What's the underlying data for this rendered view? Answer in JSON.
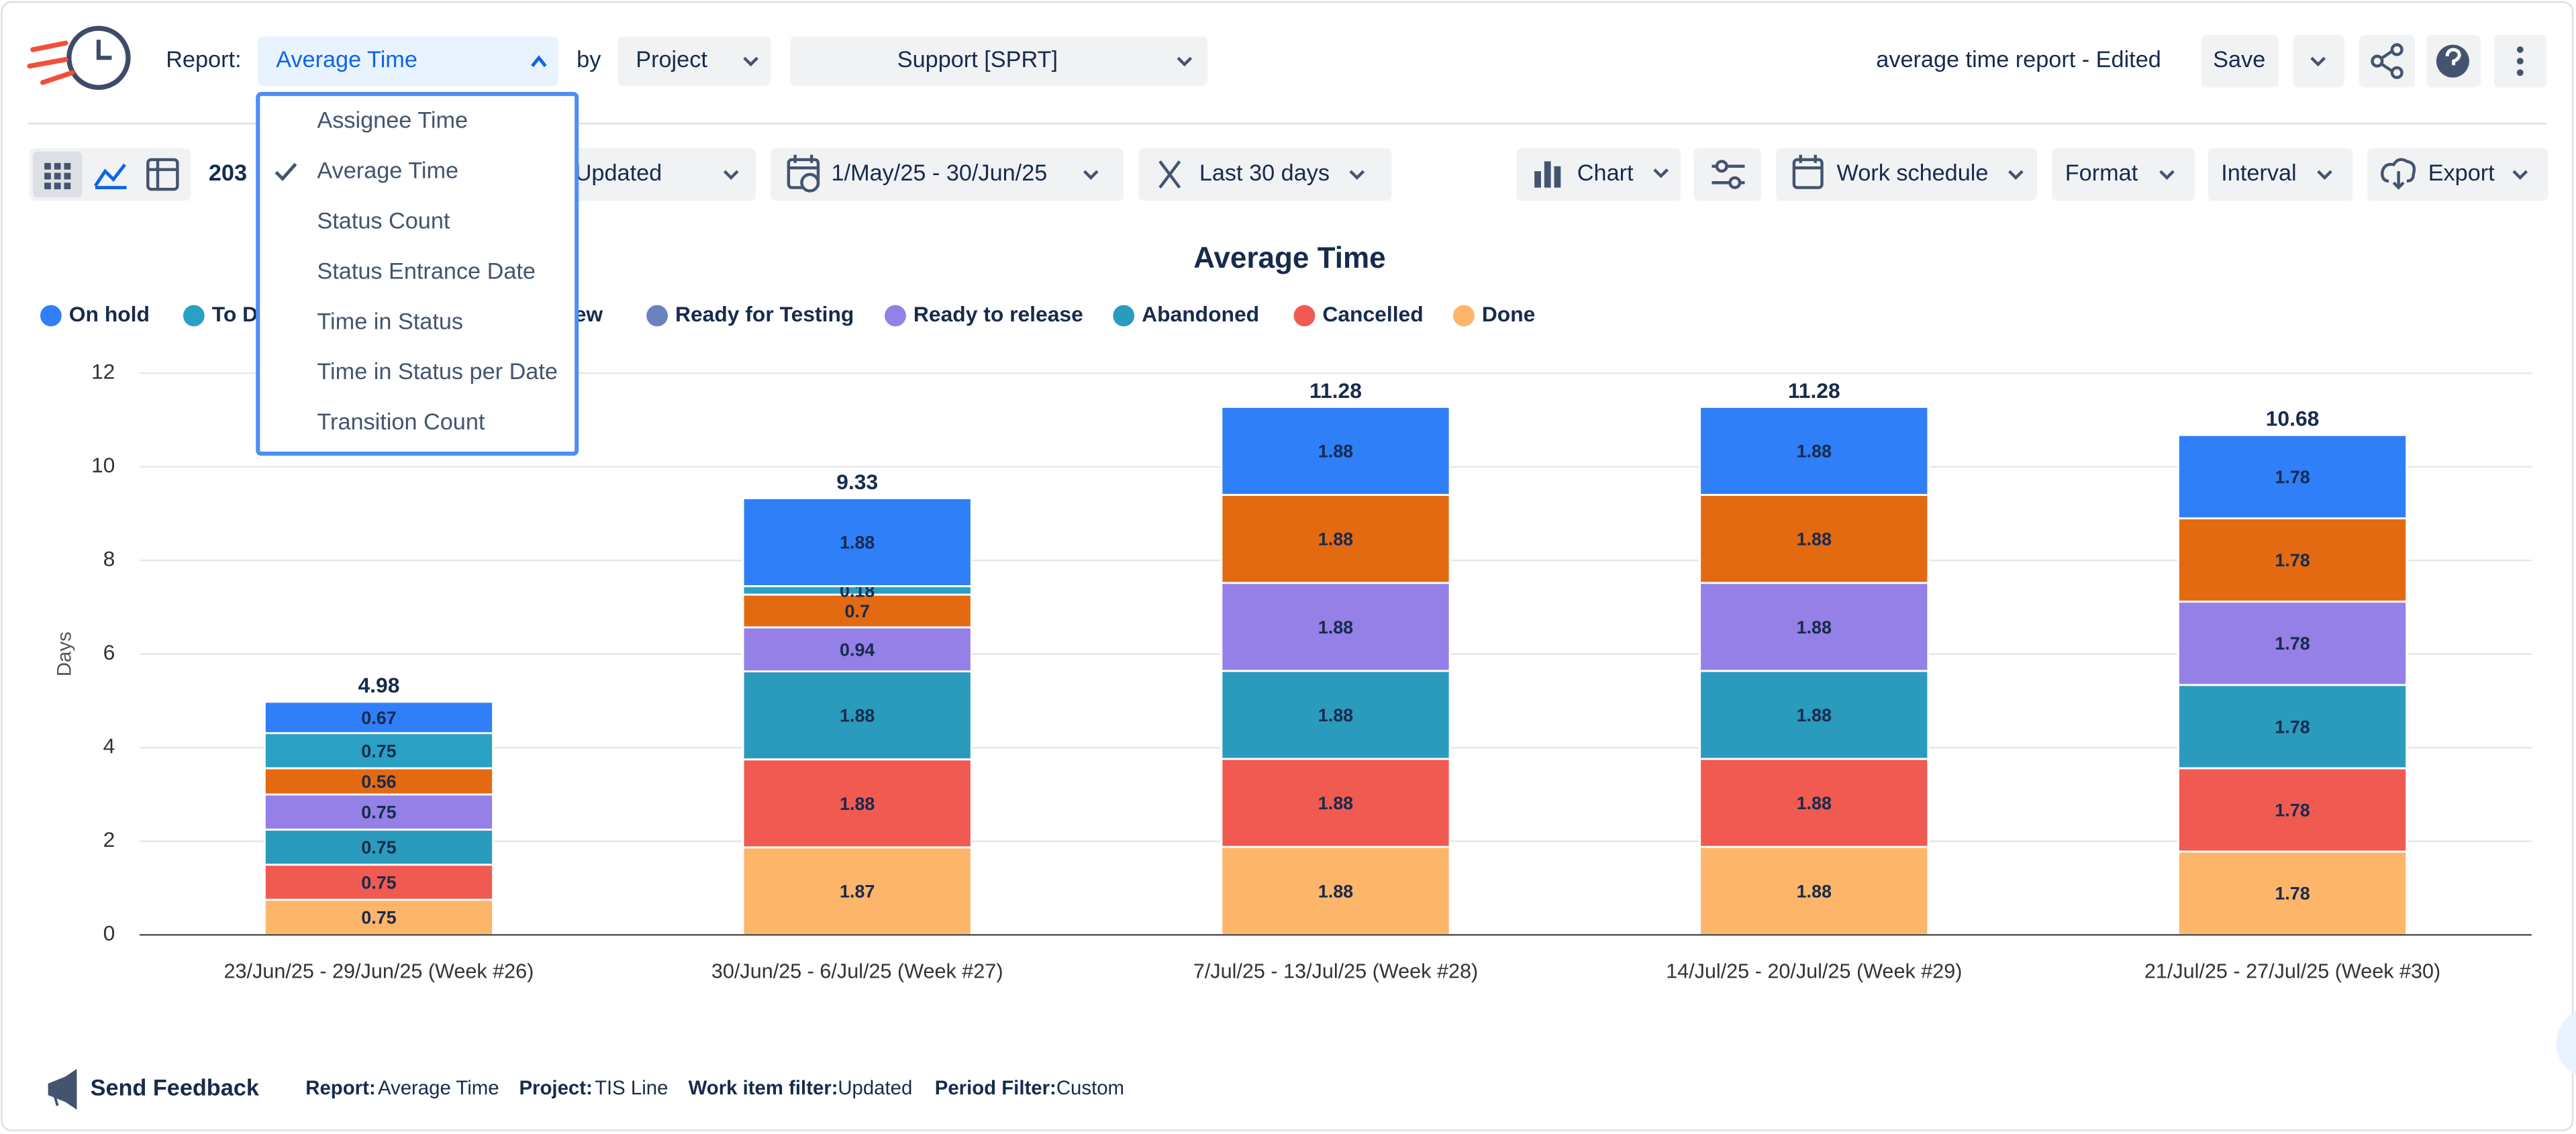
{
  "header": {
    "report_label": "Report:",
    "report": "Average Time",
    "by": "by",
    "group": "Project",
    "project": "Support [SPRT]",
    "report_name": "average time report - Edited",
    "save": "Save"
  },
  "toolbar": {
    "count": "203",
    "filter": "Updated",
    "date_range": "1/May/25 - 30/Jun/25",
    "period": "Last 30 days",
    "chart": "Chart",
    "work_schedule": "Work schedule",
    "format": "Format",
    "interval": "Interval",
    "export": "Export"
  },
  "report_menu": {
    "items": [
      "Assignee Time",
      "Average Time",
      "Status Count",
      "Status Entrance Date",
      "Time in Status",
      "Time in Status per Date",
      "Transition Count"
    ],
    "selected": 1
  },
  "chart_data": {
    "type": "bar",
    "stacked": true,
    "title": "Average Time",
    "y_label": "Days",
    "categories": [
      "23/Jun/25 - 29/Jun/25 (Week #26)",
      "30/Jun/25 - 6/Jul/25 (Week #27)",
      "7/Jul/25 - 13/Jul/25 (Week #28)",
      "14/Jul/25 - 20/Jul/25 (Week #29)",
      "21/Jul/25 - 27/Jul/25 (Week #30)"
    ],
    "series": [
      {
        "name": "On hold",
        "color": "#2f7ff8",
        "values": [
          0.67,
          1.88,
          1.88,
          1.88,
          1.78
        ]
      },
      {
        "name": "To Do",
        "color": "#2aa0c4",
        "values": [
          0.75,
          0.18,
          null,
          null,
          null
        ]
      },
      {
        "name": "In Review",
        "color": "#e46a12",
        "values": [
          0.56,
          0.7,
          1.88,
          1.88,
          1.78
        ]
      },
      {
        "name": "Ready for Testing",
        "color": "#6b82c0",
        "values": [
          null,
          null,
          null,
          null,
          null
        ]
      },
      {
        "name": "Ready to release",
        "color": "#9480e6",
        "values": [
          0.75,
          0.94,
          1.88,
          1.88,
          1.78
        ]
      },
      {
        "name": "Abandoned",
        "color": "#2a9bbd",
        "values": [
          0.75,
          1.88,
          1.88,
          1.88,
          1.78
        ]
      },
      {
        "name": "Cancelled",
        "color": "#f05a51",
        "values": [
          0.75,
          1.88,
          1.88,
          1.88,
          1.78
        ]
      },
      {
        "name": "Done",
        "color": "#fdb56a",
        "values": [
          0.75,
          1.87,
          1.88,
          1.88,
          1.78
        ]
      }
    ],
    "totals": [
      4.98,
      9.33,
      11.28,
      11.28,
      10.68
    ],
    "ylim": [
      0,
      12
    ],
    "yticks": [
      0,
      2,
      4,
      6,
      8,
      10,
      12
    ],
    "grid": true
  },
  "footer": {
    "feedback": "Send Feedback",
    "report_label": "Report:",
    "report": "Average Time",
    "project_label": "Project:",
    "project": "TIS Line",
    "filter_label": "Work item filter:",
    "filter": "Updated",
    "period_label": "Period Filter:",
    "period": "Custom"
  }
}
